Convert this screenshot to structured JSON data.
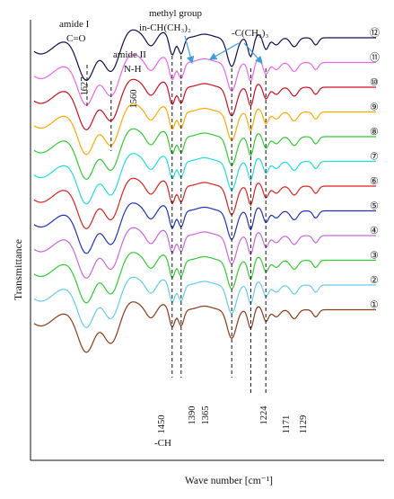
{
  "chart_data": {
    "type": "line",
    "title": "",
    "xlabel": "Wave number [cm⁻¹]",
    "ylabel": "Transmittance",
    "x_axis": "wave number, decreasing to the right",
    "grid": false,
    "legend": "numbered labels at right end of each curve",
    "annotations": [
      {
        "label_lines": [
          "amide I",
          "C=O"
        ],
        "wavenumber": 1627,
        "tick_text": "1627"
      },
      {
        "label_lines": [
          "amide II",
          "N-H"
        ],
        "wavenumber": 1560,
        "tick_text": "1560"
      },
      {
        "label_lines": [
          "methyl group",
          "in-CH(CH₃)₂"
        ],
        "wavenumbers": [
          1390,
          1365
        ]
      },
      {
        "label_lines": [
          "-C(CH₃)₃"
        ],
        "wavenumbers": [
          1365,
          1224
        ]
      },
      {
        "label_lines": [
          "-CH"
        ],
        "wavenumber": 1450
      }
    ],
    "marked_wavenumbers": [
      {
        "tick_text": "1450",
        "wavenumber": 1450
      },
      {
        "tick_text": "1390",
        "wavenumber": 1390
      },
      {
        "tick_text": "1365",
        "wavenumber": 1365
      },
      {
        "tick_text": "1224",
        "wavenumber": 1224
      },
      {
        "tick_text": "1171",
        "wavenumber": 1171
      },
      {
        "tick_text": "1129",
        "wavenumber": 1129
      }
    ],
    "series": [
      {
        "name": "①",
        "color": "#8b3a1a",
        "offset_rank": 1
      },
      {
        "name": "②",
        "color": "#66ccee",
        "offset_rank": 2
      },
      {
        "name": "③",
        "color": "#33cc33",
        "offset_rank": 3
      },
      {
        "name": "④",
        "color": "#cc66dd",
        "offset_rank": 4
      },
      {
        "name": "⑤",
        "color": "#2233bb",
        "offset_rank": 5
      },
      {
        "name": "⑥",
        "color": "#dd2222",
        "offset_rank": 6
      },
      {
        "name": "⑦",
        "color": "#22dddd",
        "offset_rank": 7
      },
      {
        "name": "⑧",
        "color": "#33cc33",
        "offset_rank": 8
      },
      {
        "name": "⑨",
        "color": "#ffaa00",
        "offset_rank": 9
      },
      {
        "name": "⑩",
        "color": "#cc1122",
        "offset_rank": 10
      },
      {
        "name": "⑪",
        "color": "#ee66ee",
        "offset_rank": 11
      },
      {
        "name": "⑫",
        "color": "#101050",
        "offset_rank": 12
      }
    ]
  }
}
